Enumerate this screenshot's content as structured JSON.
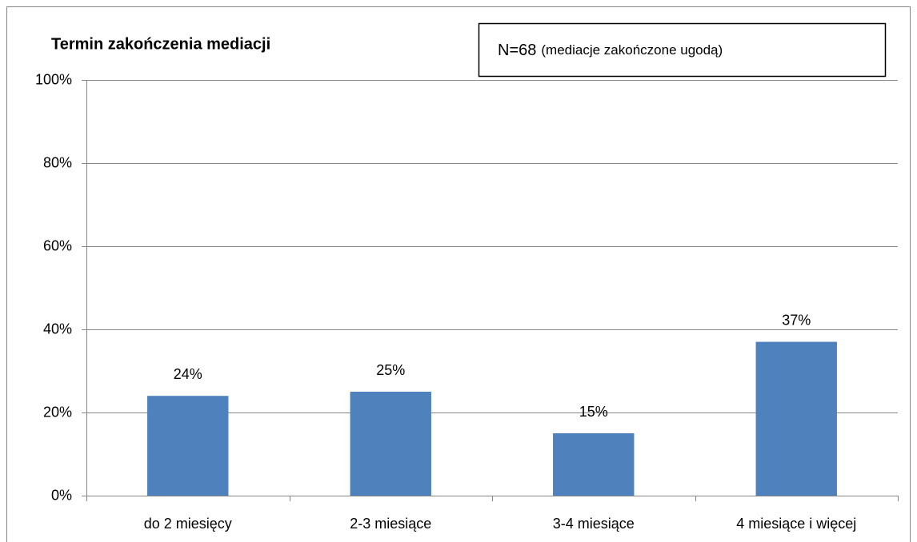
{
  "chart_data": {
    "type": "bar",
    "title": "Termin zakończenia mediacji",
    "annotation": {
      "main": "N=68",
      "note": "(mediacje zakończone ugodą)"
    },
    "categories": [
      "do 2 miesięcy",
      "2-3 miesiące",
      "3-4 miesiące",
      "4 miesiące i więcej"
    ],
    "values": [
      24,
      25,
      15,
      37
    ],
    "value_labels": [
      "24%",
      "25%",
      "15%",
      "37%"
    ],
    "color": "#4f81bd",
    "ylim": [
      0,
      100
    ],
    "yticks": [
      {
        "value": 0,
        "label": "0%"
      },
      {
        "value": 20,
        "label": "20%"
      },
      {
        "value": 40,
        "label": "40%"
      },
      {
        "value": 60,
        "label": "60%"
      },
      {
        "value": 80,
        "label": "80%"
      },
      {
        "value": 100,
        "label": "100%"
      }
    ],
    "grid": true
  }
}
